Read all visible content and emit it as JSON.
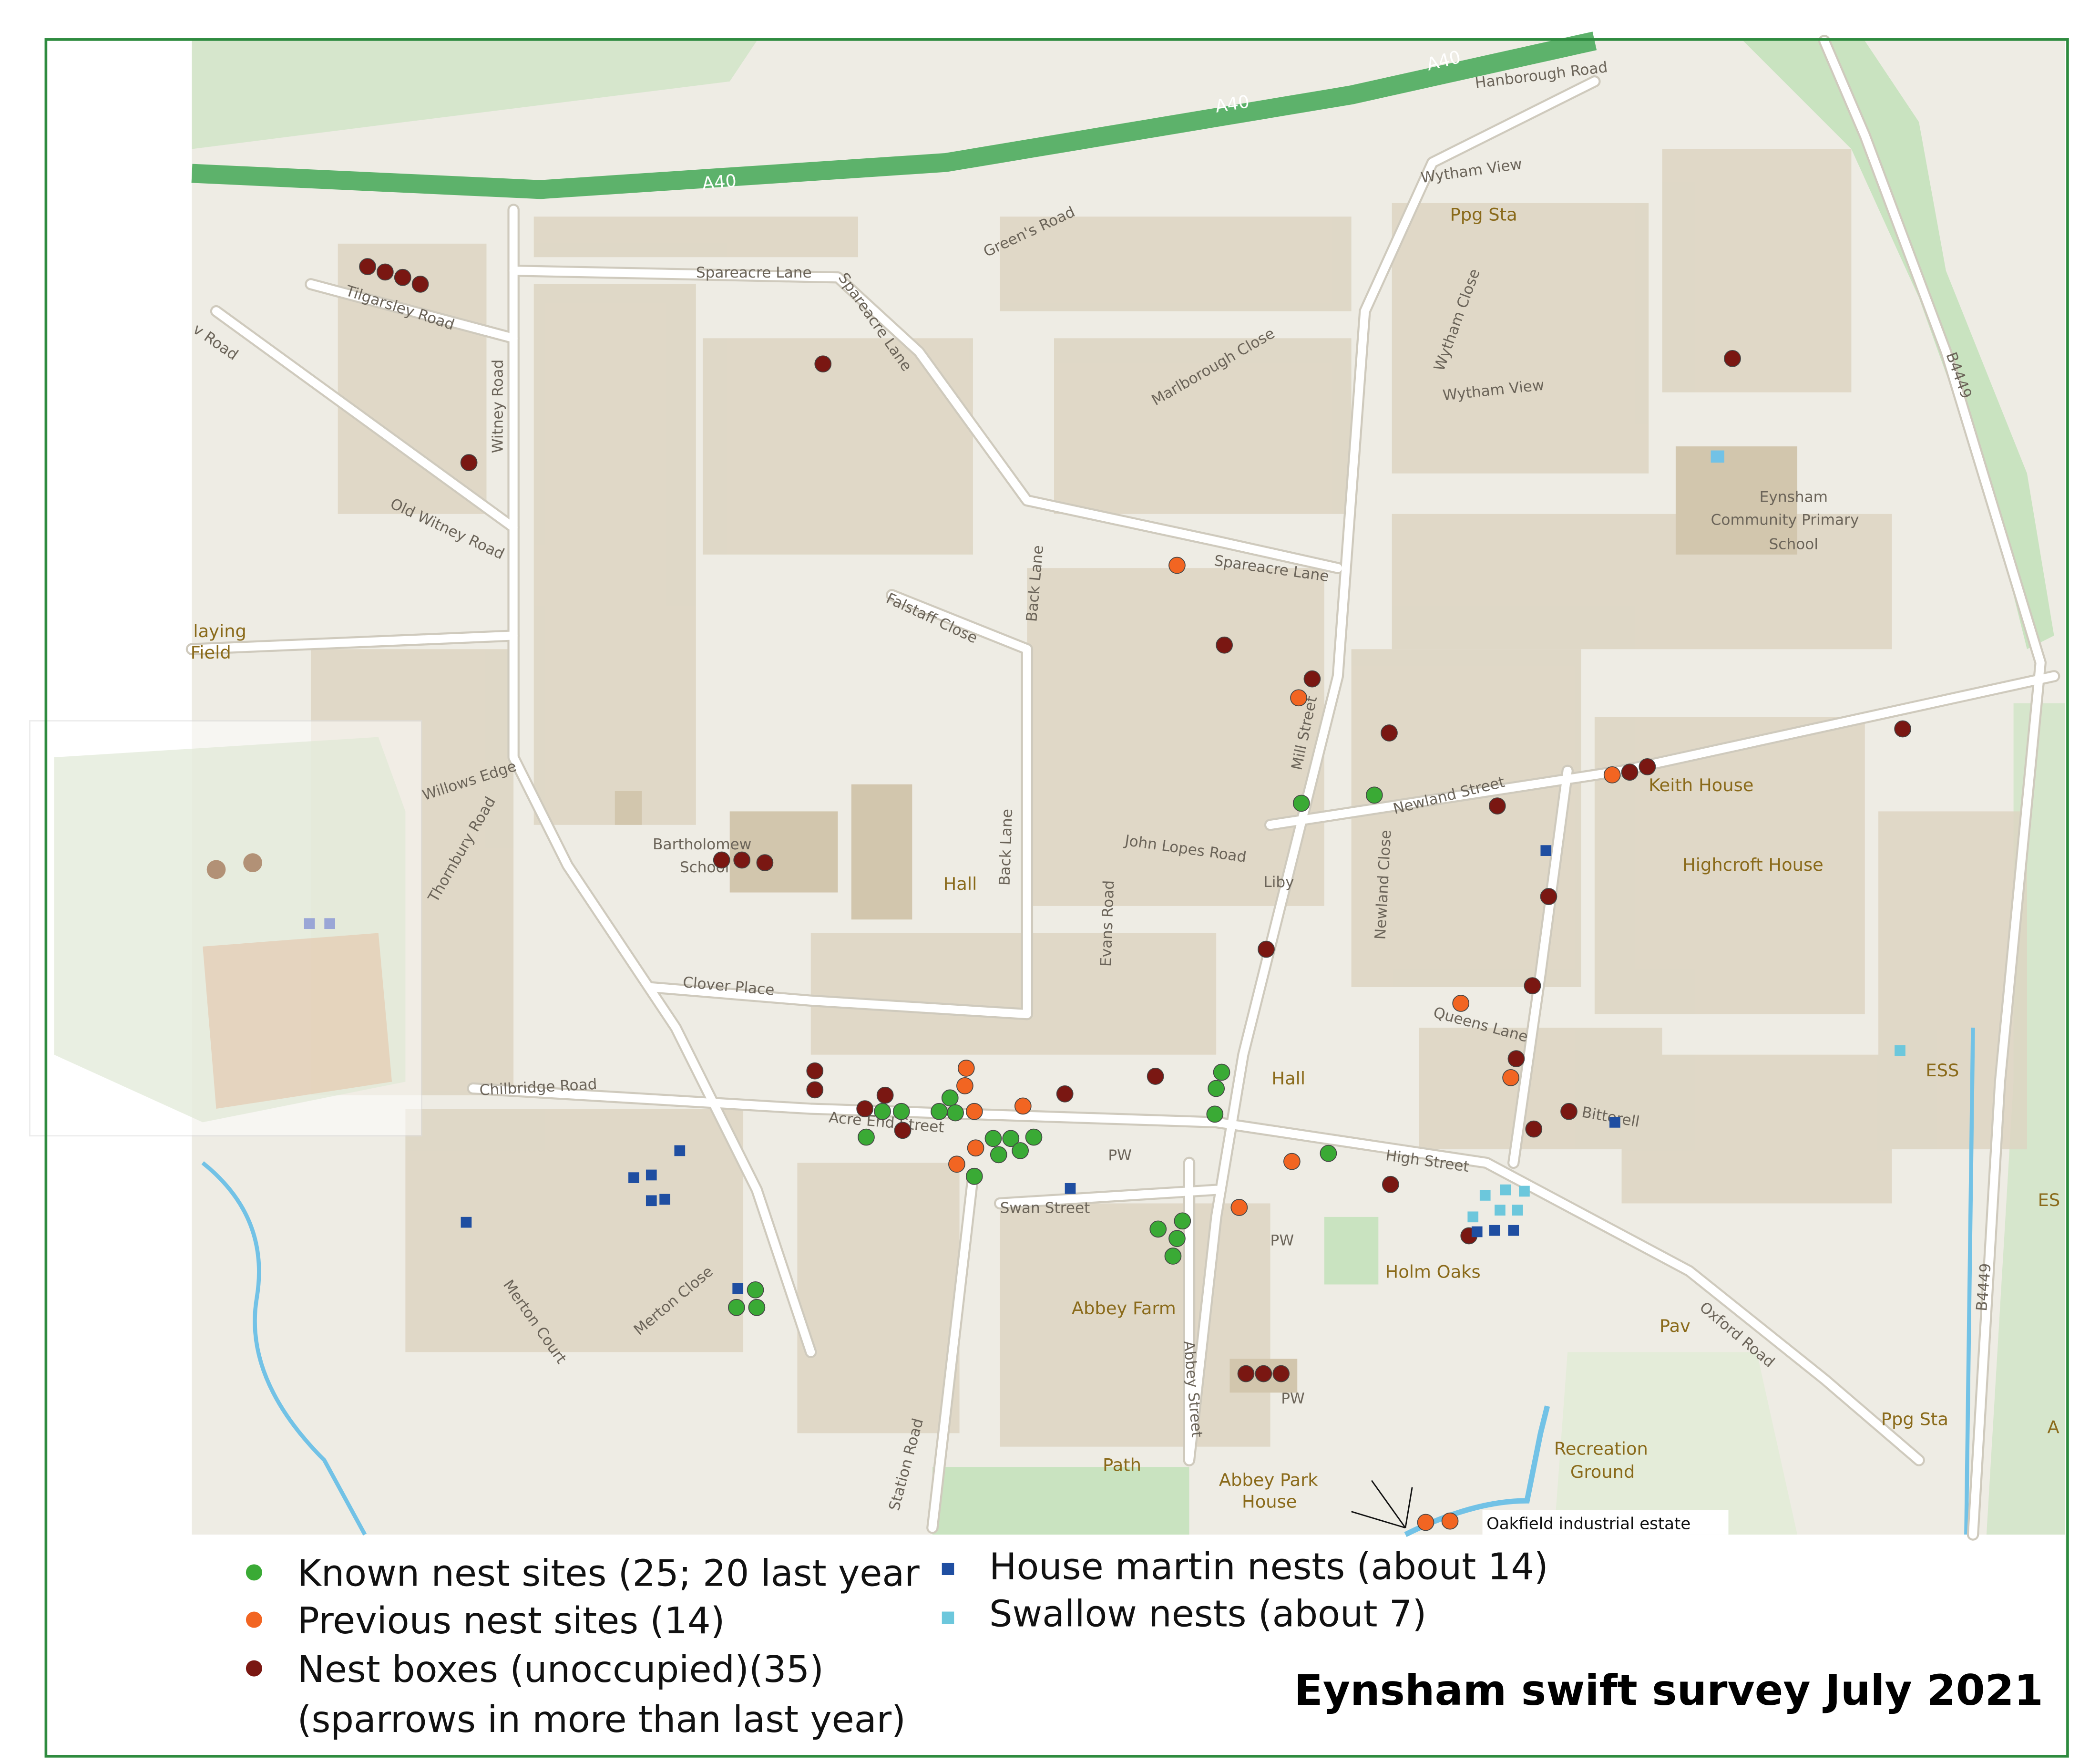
{
  "title": "Eynsham swift survey July 2021",
  "legend": [
    {
      "label": "Known nest sites (25; 20 last year",
      "color": "#3aaa35",
      "shape": "circle"
    },
    {
      "label": "Previous nest sites (14)",
      "color": "#f26522",
      "shape": "circle"
    },
    {
      "label": "Nest boxes (unoccupied)(35)",
      "label2": "(sparrows in more than last year)",
      "color": "#7a1712",
      "shape": "circle"
    },
    {
      "label": "House martin nests (about 14)",
      "color": "#1f4ea1",
      "shape": "square"
    },
    {
      "label": "Swallow nests  (about 7)",
      "color": "#6cc7dc",
      "shape": "square"
    }
  ],
  "map": {
    "colors": {
      "background": "#eeece4",
      "green": "#c9e3c0",
      "building": "#ddd5c2",
      "a_road": "#5db26b",
      "water": "#72c2e6",
      "frame": "#2e8b3f"
    },
    "roads": {
      "a40": "A40",
      "hanborough": "Hanborough Road",
      "wytham_view": "Wytham View",
      "wytham_view2": "Wytham View",
      "wytham_close": "Wytham Close",
      "greens": "Green's Road",
      "spareacre_lane": "Spareacre Lane",
      "spareacre_lane2": "Spareacre Lane",
      "spareacre_lane3": "Spareacre Lane",
      "tilgarsley": "Tilgarsley Road",
      "witney": "Witney Road",
      "old_witney": "Old Witney Road",
      "marlborough": "Marlborough Close",
      "falstaff": "Falstaff Close",
      "back_lane": "Back Lane",
      "back_lane2": "Back Lane",
      "mill": "Mill Street",
      "b4449": "B4449",
      "b4449b": "B4449",
      "willows": "Willows Edge",
      "thornbury": "Thornbury Road",
      "newland_street": "Newland Street",
      "newland_close": "Newland Close",
      "john_lopes": "John Lopes Road",
      "evans": "Evans Road",
      "clover": "Clover Place",
      "queens": "Queens Lane",
      "chilbridge": "Chilbridge Road",
      "acre_end": "Acre End Street",
      "bitterell": "Bitterell",
      "high": "High Street",
      "swan": "Swan Street",
      "merton_court": "Merton Court",
      "merton_close": "Merton Close",
      "station": "Station Road",
      "abbey_street": "Abbey Street",
      "oxford": "Oxford Road",
      "path": "Path",
      "wood_road": "v Road"
    },
    "places": {
      "ppg_sta": "Ppg Sta",
      "ppg_sta2": "Ppg Sta",
      "school1": "Eynsham",
      "school2": "Community Primary",
      "school3": "School",
      "playing1": "laying",
      "playing2": "Field",
      "bartholomew1": "Bartholomew",
      "bartholomew2": "School",
      "hall": "Hall",
      "hall2": "Hall",
      "liby": "Liby",
      "keith": "Keith House",
      "highcroft": "Highcroft House",
      "ess": "ESS",
      "es": "ES",
      "pw1": "PW",
      "pw2": "PW",
      "pw3": "PW",
      "holm": "Holm Oaks",
      "abbey_farm": "Abbey Farm",
      "pav": "Pav",
      "recreation1": "Recreation",
      "recreation2": "Ground",
      "abbey_park1": "Abbey Park",
      "abbey_park2": "House",
      "oakfield": "Oakfield industrial estate",
      "a_edge": "A"
    }
  }
}
